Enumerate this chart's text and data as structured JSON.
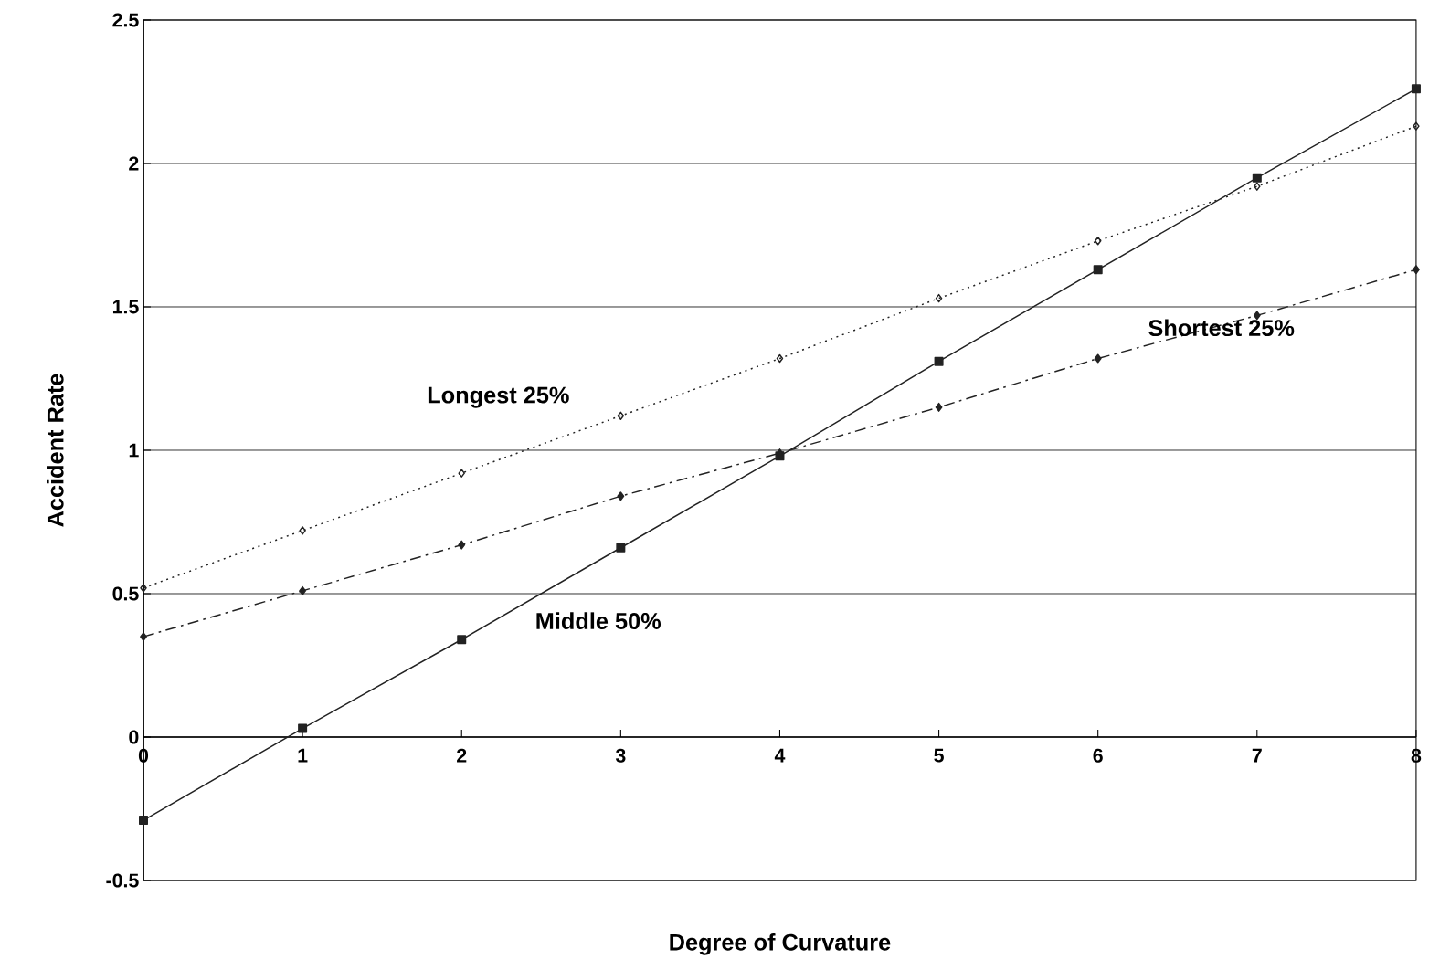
{
  "chart_data": {
    "type": "line",
    "xlabel": "Degree of Curvature",
    "ylabel": "Accident Rate",
    "x": [
      0,
      1,
      2,
      3,
      4,
      5,
      6,
      7,
      8
    ],
    "series": [
      {
        "name": "Longest 25%",
        "color": "#222222",
        "marker": "diamond",
        "line_style": "dotted",
        "values": [
          0.52,
          0.72,
          0.92,
          1.12,
          1.32,
          1.53,
          1.73,
          1.92,
          2.13
        ]
      },
      {
        "name": "Middle 50%",
        "color": "#222222",
        "marker": "square",
        "line_style": "solid",
        "values": [
          -0.29,
          0.03,
          0.34,
          0.66,
          0.98,
          1.31,
          1.63,
          1.95,
          2.26
        ]
      },
      {
        "name": "Shortest 25%",
        "color": "#222222",
        "marker": "diamond",
        "line_style": "dashed",
        "values": [
          0.35,
          0.51,
          0.67,
          0.84,
          0.99,
          1.15,
          1.32,
          1.47,
          1.63
        ]
      }
    ],
    "xlim": [
      0,
      8
    ],
    "ylim": [
      -0.5,
      2.5
    ],
    "xticks": [
      0,
      1,
      2,
      3,
      4,
      5,
      6,
      7,
      8
    ],
    "yticks": [
      -0.5,
      0,
      0.5,
      1,
      1.5,
      2,
      2.5
    ],
    "grid": "y",
    "legend": false
  }
}
